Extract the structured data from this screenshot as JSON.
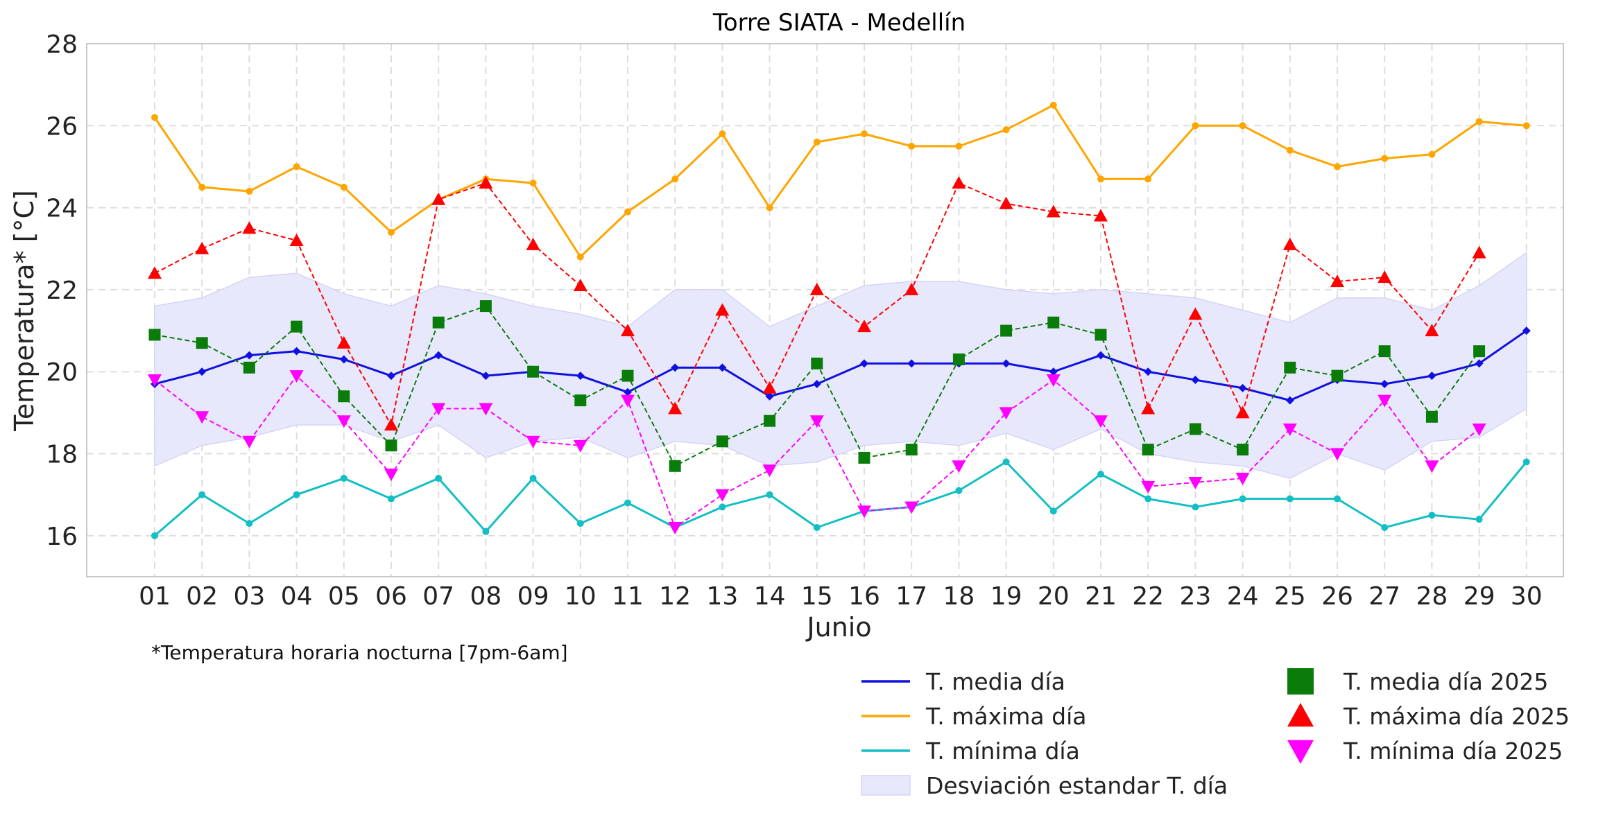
{
  "chart_data": {
    "type": "line",
    "title": "Torre SIATA - Medellín",
    "xlabel": "Junio",
    "ylabel": "Temperatura* [°C]",
    "note": "*Temperatura horaria nocturna [7pm-6am]",
    "categories": [
      "01",
      "02",
      "03",
      "04",
      "05",
      "06",
      "07",
      "08",
      "09",
      "10",
      "11",
      "12",
      "13",
      "14",
      "15",
      "16",
      "17",
      "18",
      "19",
      "20",
      "21",
      "22",
      "23",
      "24",
      "25",
      "26",
      "27",
      "28",
      "29",
      "30"
    ],
    "ylim": [
      15,
      28
    ],
    "yticks": [
      "16",
      "18",
      "20",
      "22",
      "24",
      "26",
      "28"
    ],
    "grid": true,
    "legend_position": "bottom-right",
    "band": {
      "name": "Desviación estandar T. día",
      "color": "#e8e8fc",
      "upper": [
        21.6,
        21.8,
        22.3,
        22.4,
        21.9,
        21.6,
        22.1,
        21.9,
        21.6,
        21.4,
        21.1,
        22.0,
        22.0,
        21.1,
        21.6,
        22.1,
        22.2,
        22.2,
        22.0,
        21.9,
        22.0,
        21.9,
        21.8,
        21.5,
        21.2,
        21.8,
        21.8,
        21.5,
        22.1,
        22.9
      ],
      "lower": [
        17.7,
        18.2,
        18.4,
        18.7,
        18.7,
        18.3,
        18.7,
        17.9,
        18.3,
        18.4,
        17.9,
        18.3,
        18.2,
        17.7,
        17.8,
        18.2,
        18.3,
        18.2,
        18.5,
        18.1,
        18.6,
        18.0,
        17.8,
        17.7,
        17.4,
        18.0,
        17.6,
        18.3,
        18.4,
        19.1
      ]
    },
    "series": [
      {
        "name": "T. media día",
        "color": "#1010e0",
        "style": "solid",
        "marker": "diamond",
        "values": [
          19.7,
          20.0,
          20.4,
          20.5,
          20.3,
          19.9,
          20.4,
          19.9,
          20.0,
          19.9,
          19.5,
          20.1,
          20.1,
          19.4,
          19.7,
          20.2,
          20.2,
          20.2,
          20.2,
          20.0,
          20.4,
          20.0,
          19.8,
          19.6,
          19.3,
          19.8,
          19.7,
          19.9,
          20.2,
          21.0
        ]
      },
      {
        "name": "T. máxima día",
        "color": "#ffa500",
        "style": "solid",
        "marker": "circle",
        "values": [
          26.2,
          24.5,
          24.4,
          25.0,
          24.5,
          23.4,
          24.2,
          24.7,
          24.6,
          22.8,
          23.9,
          24.7,
          25.8,
          24.0,
          25.6,
          25.8,
          25.5,
          25.5,
          25.9,
          26.5,
          24.7,
          24.7,
          26.0,
          26.0,
          25.4,
          25.0,
          25.2,
          25.3,
          26.1,
          26.0
        ]
      },
      {
        "name": "T. mínima día",
        "color": "#13bfc4",
        "style": "solid",
        "marker": "circle",
        "values": [
          16.0,
          17.0,
          16.3,
          17.0,
          17.4,
          16.9,
          17.4,
          16.1,
          17.4,
          16.3,
          16.8,
          16.2,
          16.7,
          17.0,
          16.2,
          16.6,
          16.7,
          17.1,
          17.8,
          16.6,
          17.5,
          16.9,
          16.7,
          16.9,
          16.9,
          16.9,
          16.2,
          16.5,
          16.4,
          17.8
        ]
      },
      {
        "name": "T. media día 2025",
        "color": "#0a7c0a",
        "style": "dashed",
        "marker": "square",
        "values": [
          20.9,
          20.7,
          20.1,
          21.1,
          19.4,
          18.2,
          21.2,
          21.6,
          20.0,
          19.3,
          19.9,
          17.7,
          18.3,
          18.8,
          20.2,
          17.9,
          18.1,
          20.3,
          21.0,
          21.2,
          20.9,
          18.1,
          18.6,
          18.1,
          20.1,
          19.9,
          20.5,
          18.9,
          20.5,
          null
        ]
      },
      {
        "name": "T. máxima día 2025",
        "color": "#ff0000",
        "style": "dashed",
        "marker": "triangle-up",
        "values": [
          22.4,
          23.0,
          23.5,
          23.2,
          20.7,
          18.7,
          24.2,
          24.6,
          23.1,
          22.1,
          21.0,
          19.1,
          21.5,
          19.6,
          22.0,
          21.1,
          22.0,
          24.6,
          24.1,
          23.9,
          23.8,
          19.1,
          21.4,
          19.0,
          23.1,
          22.2,
          22.3,
          21.0,
          22.9,
          null
        ]
      },
      {
        "name": "T. mínima día 2025",
        "color": "#ff00ff",
        "style": "dashed",
        "marker": "triangle-down",
        "values": [
          19.8,
          18.9,
          18.3,
          19.9,
          18.8,
          17.5,
          19.1,
          19.1,
          18.3,
          18.2,
          19.3,
          16.2,
          17.0,
          17.6,
          18.8,
          16.6,
          16.7,
          17.7,
          19.0,
          19.8,
          18.8,
          17.2,
          17.3,
          17.4,
          18.6,
          18.0,
          19.3,
          17.7,
          18.6,
          null
        ]
      }
    ]
  }
}
